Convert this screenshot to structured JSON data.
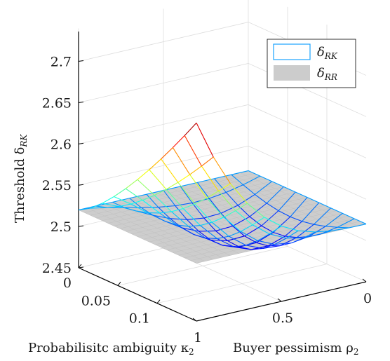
{
  "chart_data": {
    "type": "surface",
    "zlabel_main": "Threshold δ",
    "zlabel_sub": "RK",
    "xlabel_main": "Probabilisitc ambiguity κ",
    "xlabel_sub": "2",
    "ylabel_main": "Buyer pessimism ρ",
    "ylabel_sub": "2",
    "zlim": [
      2.45,
      2.72
    ],
    "xlim": [
      0,
      0.15
    ],
    "ylim": [
      0,
      1
    ],
    "z_ticks": [
      "2.45",
      "2.5",
      "2.55",
      "2.6",
      "2.65",
      "2.7"
    ],
    "x_ticks": [
      "0",
      "0.05",
      "0.1"
    ],
    "y_ticks": [
      "0",
      "0.5",
      "1"
    ],
    "grid": true,
    "legend_position": "top-right",
    "legend": [
      {
        "main": "δ",
        "sub": "RK",
        "style": "mesh",
        "color": "#1aa3ff"
      },
      {
        "main": "δ",
        "sub": "RR",
        "style": "surface",
        "color": "#cccccc"
      }
    ],
    "colormap": "jet",
    "series": [
      {
        "name": "δRK",
        "style": "mesh",
        "kappa_range": [
          0,
          0.15
        ],
        "rho_range": [
          0,
          1
        ],
        "corner_values": {
          "k0_r0": 2.52,
          "k0_r1": 2.52,
          "kmax_r1": 2.69,
          "kmax_r0": 2.52
        },
        "minimum": 2.455
      },
      {
        "name": "δRR",
        "style": "surface",
        "value": 2.52
      }
    ]
  }
}
